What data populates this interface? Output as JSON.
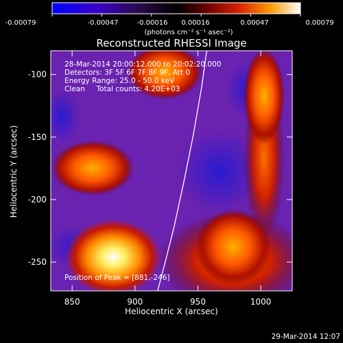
{
  "colorbar": {
    "tick_labels": [
      "-0.00079",
      "-0.00047",
      "-0.00016",
      "0.00016",
      "0.00047",
      "0.00079"
    ],
    "min": -0.00079,
    "max": 0.00079,
    "unit_label": "(photons cm⁻² s⁻¹ asec⁻²)"
  },
  "chart_data": {
    "type": "heatmap",
    "title": "Reconstructed RHESSI Image",
    "xlabel": "Heliocentric X (arcsec)",
    "ylabel": "Heliocentric Y (arcsec)",
    "xlim": [
      833,
      1025
    ],
    "ylim": [
      -273,
      -81
    ],
    "x_ticks": [
      850,
      900,
      950,
      1000
    ],
    "y_ticks": [
      -100,
      -150,
      -200,
      -250
    ],
    "annotations": [
      "28-Mar-2014 20:00:12.000 to 20:02:20.000",
      "Detectors: 3F 5F 6F 7F 8F 9F, Att 0",
      "Energy Range: 25.0 - 50.0 keV",
      "Clean     Total counts: 4.20E+03"
    ],
    "peak_label": "Position of Peak = [881,-246]",
    "peak": [
      881,
      -246
    ],
    "limb_curve": [
      [
        957,
        -81
      ],
      [
        953,
        -110
      ],
      [
        946,
        -150
      ],
      [
        939,
        -185
      ],
      [
        931,
        -222
      ],
      [
        924,
        -250
      ],
      [
        918,
        -273
      ]
    ]
  },
  "footer": {
    "timestamp": "29-Mar-2014 12:07"
  }
}
